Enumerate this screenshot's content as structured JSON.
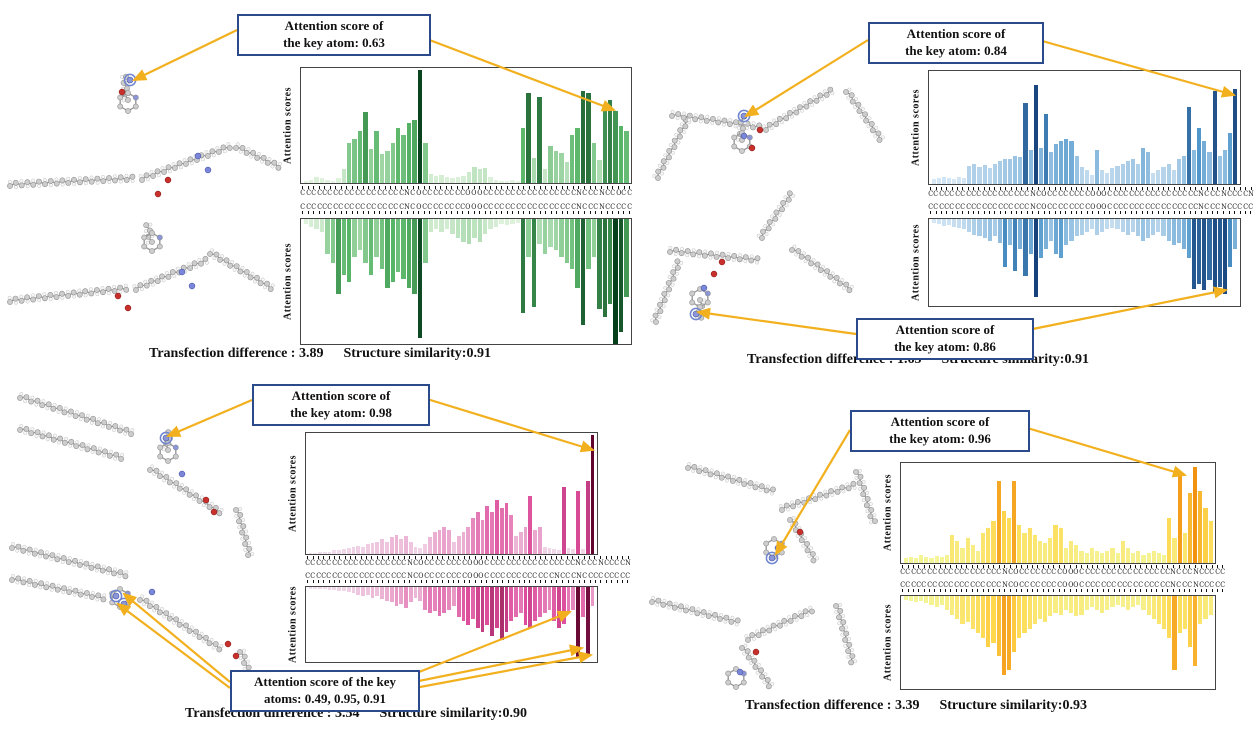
{
  "panels": [
    {
      "name": "top-left",
      "callouts": [
        {
          "line1": "Attention score of",
          "line2": "the key atom: 0.63"
        }
      ],
      "caption": {
        "transfection": "Transfection difference : 3.89",
        "similarity": "Structure similarity:0.91"
      }
    },
    {
      "name": "top-right",
      "callouts": [
        {
          "line1": "Attention score of",
          "line2": "the key atom: 0.84"
        },
        {
          "line1": "Attention score of",
          "line2": "the key atom: 0.86"
        }
      ],
      "caption": {
        "transfection": "Transfection difference : 1.65",
        "similarity": "Structure similarity:0.91"
      }
    },
    {
      "name": "bottom-left",
      "callouts": [
        {
          "line1": "Attention score of",
          "line2": "the key atom: 0.98"
        },
        {
          "line1": "Attention score of the key",
          "line2": "atoms: 0.49, 0.95, 0.91"
        }
      ],
      "caption": {
        "transfection": "Transfection difference : 3.54",
        "similarity": "Structure similarity:0.90"
      }
    },
    {
      "name": "bottom-right",
      "callouts": [
        {
          "line1": "Attention score of",
          "line2": "the key atom: 0.96"
        }
      ],
      "caption": {
        "transfection": "Transfection difference : 3.39",
        "similarity": "Structure similarity:0.93"
      }
    }
  ],
  "colors": {
    "connector": "#F2B01E",
    "callout_border": "#2B4A8B"
  },
  "chart_data": [
    {
      "panel": "top-left",
      "type": "bar",
      "ylabel": "Attention scores",
      "ylim": [
        0,
        1
      ],
      "color_stops": [
        "#e9f6e5",
        "#57b567",
        "#063f1c"
      ],
      "top": {
        "direction": "up",
        "categories": "CCCCCCCCCCCCCCCCCCCNCOCCCCCCCCOOOCCCCCCCCCCCCCCCCCNCCCNCCOCC",
        "values": [
          0.02,
          0.03,
          0.05,
          0.04,
          0.03,
          0.02,
          0.04,
          0.12,
          0.35,
          0.38,
          0.45,
          0.62,
          0.3,
          0.45,
          0.25,
          0.28,
          0.35,
          0.48,
          0.42,
          0.52,
          0.55,
          0.98,
          0.35,
          0.08,
          0.06,
          0.07,
          0.05,
          0.04,
          0.05,
          0.06,
          0.1,
          0.14,
          0.12,
          0.13,
          0.05,
          0.03,
          0.02,
          0.02,
          0.03,
          0.02,
          0.48,
          0.78,
          0.22,
          0.75,
          0.12,
          0.32,
          0.28,
          0.26,
          0.18,
          0.42,
          0.48,
          0.8,
          0.78,
          0.35,
          0.2,
          0.65,
          0.72,
          0.63,
          0.5,
          0.45
        ],
        "key_atom_score": 0.63
      },
      "bottom": {
        "direction": "down",
        "categories": "CCCCCCCCCCCCCCCCCCCNCOCCCCCCCCOOOCCCCCCCCCCCCCCCCCNCCCNCCCCC",
        "values": [
          0.04,
          0.06,
          0.08,
          0.1,
          0.28,
          0.35,
          0.6,
          0.45,
          0.5,
          0.3,
          0.25,
          0.35,
          0.45,
          0.3,
          0.4,
          0.55,
          0.5,
          0.42,
          0.48,
          0.55,
          0.6,
          0.95,
          0.35,
          0.1,
          0.08,
          0.1,
          0.08,
          0.12,
          0.15,
          0.18,
          0.2,
          0.15,
          0.18,
          0.12,
          0.08,
          0.06,
          0.04,
          0.05,
          0.04,
          0.03,
          0.75,
          0.3,
          0.7,
          0.2,
          0.28,
          0.22,
          0.25,
          0.3,
          0.35,
          0.4,
          0.55,
          0.85,
          0.4,
          0.3,
          0.72,
          0.78,
          0.68,
          1.0,
          0.9,
          0.62
        ]
      }
    },
    {
      "panel": "top-right",
      "type": "bar",
      "ylabel": "Attention scores",
      "ylim": [
        0,
        1
      ],
      "color_stops": [
        "#e3eef8",
        "#4f97cc",
        "#082c66"
      ],
      "top": {
        "direction": "up",
        "categories": "CCCCCCCCCCCCCCCCCCCNCOCCCCCCCCOOOCCCCCCCCCCCCCCCCCNCCCNCCCCN",
        "values": [
          0.04,
          0.05,
          0.06,
          0.05,
          0.04,
          0.06,
          0.05,
          0.16,
          0.18,
          0.15,
          0.17,
          0.14,
          0.18,
          0.2,
          0.22,
          0.22,
          0.25,
          0.24,
          0.72,
          0.3,
          0.88,
          0.32,
          0.62,
          0.28,
          0.35,
          0.38,
          0.4,
          0.38,
          0.25,
          0.15,
          0.12,
          0.08,
          0.3,
          0.12,
          0.1,
          0.14,
          0.16,
          0.18,
          0.2,
          0.22,
          0.18,
          0.32,
          0.28,
          0.1,
          0.12,
          0.15,
          0.18,
          0.12,
          0.22,
          0.25,
          0.68,
          0.3,
          0.5,
          0.38,
          0.28,
          0.82,
          0.25,
          0.3,
          0.45,
          0.84
        ],
        "key_atom_score": 0.84
      },
      "bottom": {
        "direction": "down",
        "categories": "CCCCCCCCCCCCCCCCCCCNCOCCCCCCCCOOOCCCCCCCCCCCCCCCCCNCCCNCCCCC",
        "values": [
          0.05,
          0.06,
          0.08,
          0.07,
          0.09,
          0.1,
          0.12,
          0.15,
          0.18,
          0.2,
          0.22,
          0.25,
          0.2,
          0.28,
          0.55,
          0.3,
          0.6,
          0.35,
          0.65,
          0.4,
          0.9,
          0.45,
          0.35,
          0.25,
          0.4,
          0.45,
          0.3,
          0.25,
          0.2,
          0.18,
          0.15,
          0.12,
          0.18,
          0.15,
          0.12,
          0.1,
          0.12,
          0.15,
          0.18,
          0.15,
          0.2,
          0.25,
          0.22,
          0.18,
          0.15,
          0.2,
          0.25,
          0.3,
          0.28,
          0.35,
          0.45,
          0.8,
          0.75,
          0.82,
          0.7,
          0.84,
          0.78,
          0.86,
          0.55,
          0.35
        ],
        "key_atom_score": 0.86
      }
    },
    {
      "panel": "bottom-left",
      "type": "bar",
      "ylabel": "Attention scores",
      "ylim": [
        0,
        1
      ],
      "color_stops": [
        "#f2e4f0",
        "#dd4d9b",
        "#5c0129"
      ],
      "top": {
        "direction": "up",
        "categories": "CCCCCCCCCCCCCCCCCCCNCOCCCCCCCCOOOCCCCCCCCCCCCCCCCCNCCCNCCCCN",
        "values": [
          0.01,
          0.01,
          0.02,
          0.02,
          0.02,
          0.03,
          0.03,
          0.04,
          0.05,
          0.06,
          0.07,
          0.06,
          0.08,
          0.09,
          0.1,
          0.12,
          0.1,
          0.14,
          0.16,
          0.12,
          0.15,
          0.1,
          0.06,
          0.05,
          0.08,
          0.14,
          0.18,
          0.2,
          0.22,
          0.2,
          0.1,
          0.15,
          0.18,
          0.22,
          0.3,
          0.35,
          0.28,
          0.4,
          0.35,
          0.45,
          0.38,
          0.42,
          0.32,
          0.15,
          0.18,
          0.22,
          0.48,
          0.2,
          0.22,
          0.06,
          0.05,
          0.04,
          0.03,
          0.55,
          0.05,
          0.04,
          0.52,
          0.04,
          0.6,
          0.98
        ],
        "key_atom_score": 0.98
      },
      "bottom": {
        "direction": "down",
        "categories": "CCCCCCCCCCCCCCCCCCCNCOCCCCCCCCOOOCCCCCCCCCCCCCNCCCNCCCCCCCCC",
        "values": [
          0.02,
          0.02,
          0.03,
          0.03,
          0.04,
          0.04,
          0.05,
          0.05,
          0.06,
          0.08,
          0.1,
          0.12,
          0.1,
          0.14,
          0.12,
          0.16,
          0.18,
          0.2,
          0.25,
          0.22,
          0.28,
          0.2,
          0.15,
          0.18,
          0.3,
          0.35,
          0.32,
          0.38,
          0.35,
          0.3,
          0.25,
          0.4,
          0.45,
          0.5,
          0.42,
          0.55,
          0.6,
          0.5,
          0.65,
          0.55,
          0.7,
          0.6,
          0.45,
          0.4,
          0.35,
          0.5,
          0.55,
          0.45,
          0.4,
          0.35,
          0.3,
          0.45,
          0.55,
          0.49,
          0.35,
          0.3,
          0.95,
          0.4,
          0.91,
          0.25
        ],
        "key_atom_scores": [
          0.49,
          0.95,
          0.91
        ]
      }
    },
    {
      "panel": "bottom-right",
      "type": "bar",
      "ylabel": "Attention scores",
      "ylim": [
        0,
        1
      ],
      "color_stops": [
        "#f3f9a2",
        "#ffd84d",
        "#f08c0c"
      ],
      "top": {
        "direction": "up",
        "categories": "CCCCCCCCCCCCCCCCCCCNCOCCCCCCCCOOOCCCCCCCCCCCCCCCCCNCCCNCCCCC",
        "values": [
          0.05,
          0.06,
          0.05,
          0.08,
          0.06,
          0.05,
          0.07,
          0.06,
          0.08,
          0.28,
          0.22,
          0.15,
          0.25,
          0.18,
          0.12,
          0.3,
          0.35,
          0.42,
          0.82,
          0.52,
          0.45,
          0.82,
          0.38,
          0.3,
          0.35,
          0.28,
          0.22,
          0.2,
          0.25,
          0.38,
          0.35,
          0.15,
          0.22,
          0.18,
          0.12,
          0.1,
          0.15,
          0.12,
          0.1,
          0.12,
          0.15,
          0.1,
          0.22,
          0.15,
          0.1,
          0.12,
          0.08,
          0.1,
          0.12,
          0.1,
          0.08,
          0.45,
          0.25,
          0.88,
          0.3,
          0.7,
          0.96,
          0.72,
          0.55,
          0.42
        ],
        "key_atom_score": 0.96
      },
      "bottom": {
        "direction": "down",
        "categories": "CCCCCCCCCCCCCCCCCCCNCOCCCCCCCCOOOCCCCCCCCCCCCCCCCCNCCCNCCCCC",
        "values": [
          0.04,
          0.05,
          0.06,
          0.05,
          0.08,
          0.1,
          0.12,
          0.1,
          0.15,
          0.2,
          0.25,
          0.3,
          0.28,
          0.35,
          0.4,
          0.45,
          0.55,
          0.5,
          0.65,
          0.85,
          0.8,
          0.6,
          0.45,
          0.4,
          0.35,
          0.3,
          0.25,
          0.28,
          0.22,
          0.18,
          0.2,
          0.15,
          0.18,
          0.22,
          0.2,
          0.15,
          0.12,
          0.15,
          0.18,
          0.15,
          0.12,
          0.1,
          0.12,
          0.15,
          0.12,
          0.1,
          0.15,
          0.2,
          0.25,
          0.3,
          0.35,
          0.45,
          0.8,
          0.4,
          0.35,
          0.55,
          0.75,
          0.3,
          0.25,
          0.2
        ]
      }
    }
  ]
}
